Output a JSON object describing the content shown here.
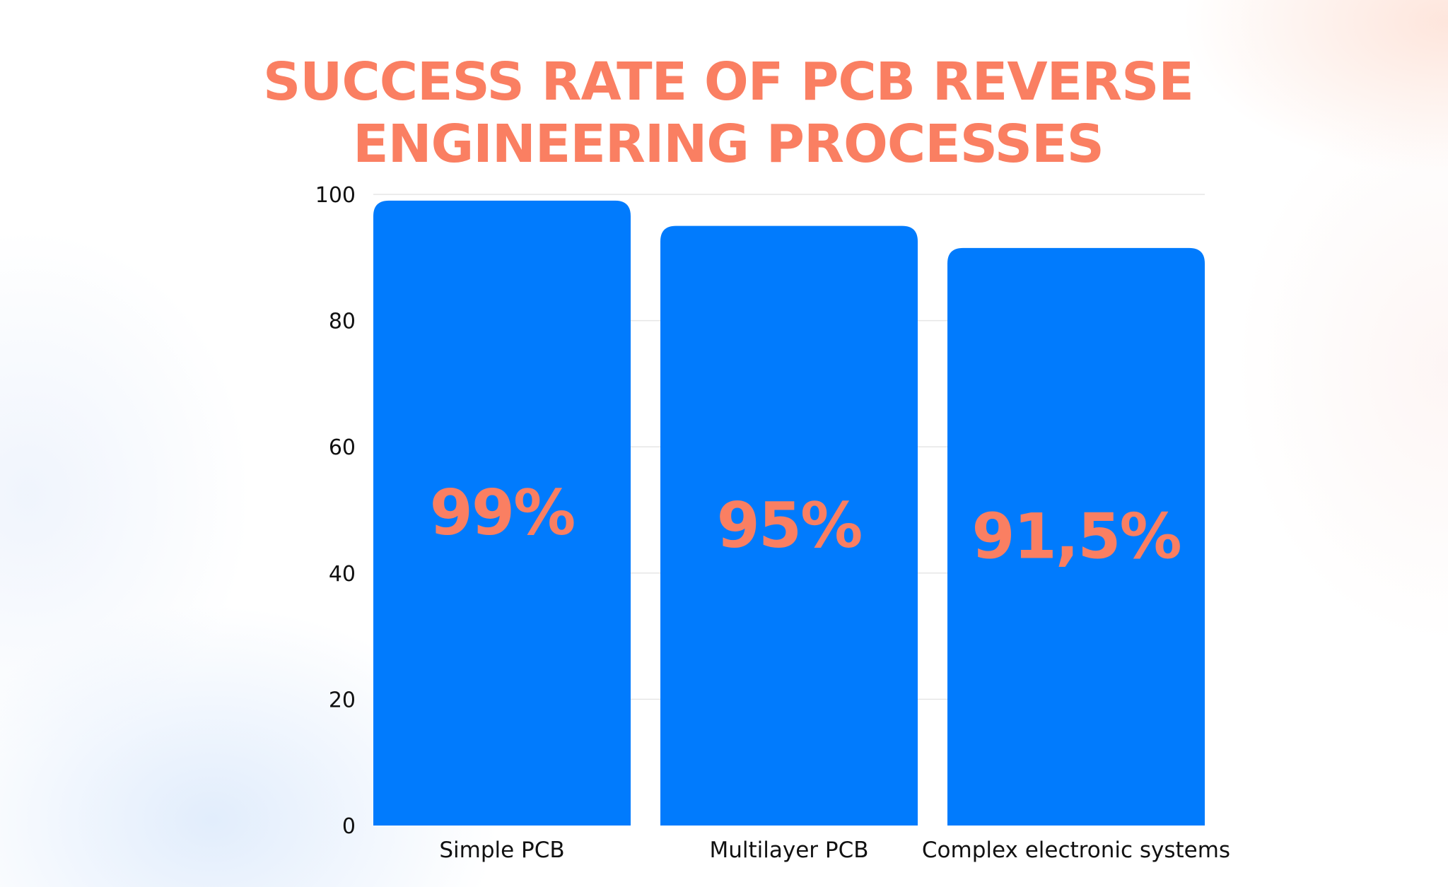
{
  "chart_data": {
    "type": "bar",
    "title_lines": [
      "SUCCESS RATE OF PCB REVERSE",
      "ENGINEERING PROCESSES"
    ],
    "categories": [
      "Simple PCB",
      "Multilayer PCB",
      "Complex electronic systems"
    ],
    "values": [
      99,
      95,
      91.5
    ],
    "data_labels": [
      "99%",
      "95%",
      "91,5%"
    ],
    "xlabel": "",
    "ylabel": "",
    "ylim": [
      0,
      100
    ],
    "yticks": [
      0,
      20,
      40,
      60,
      80,
      100
    ],
    "grid": true,
    "legend": "none"
  },
  "colors": {
    "bar": "#017bfd",
    "title": "#fa7f62",
    "data_label": "#fa7f62",
    "grid": "#e6e6e6"
  }
}
